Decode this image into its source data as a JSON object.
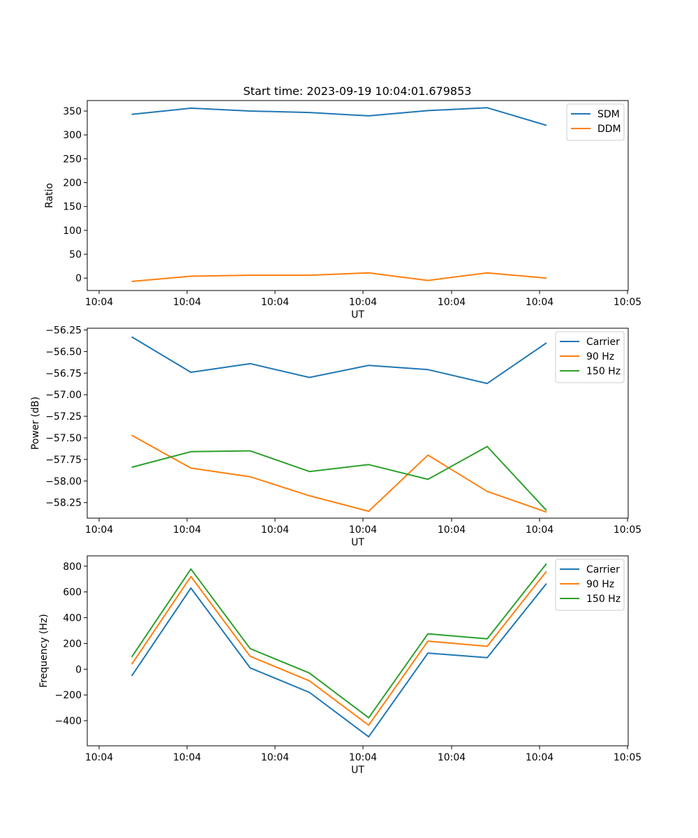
{
  "figure": {
    "title": "Start time: 2023-09-19 10:04:01.679853"
  },
  "chart_data": [
    {
      "type": "line",
      "title": "Start time: 2023-09-19 10:04:01.679853",
      "xlabel": "UT",
      "ylabel": "Ratio",
      "x_tick_labels": [
        "10:04",
        "10:04",
        "10:04",
        "10:04",
        "10:04",
        "10:04",
        "10:04",
        "10:05"
      ],
      "y_ticks": [
        0,
        50,
        100,
        150,
        200,
        250,
        300,
        350
      ],
      "ylim": [
        -26,
        372
      ],
      "x": [
        1,
        2,
        3,
        4,
        5,
        6,
        7,
        8
      ],
      "xlim": [
        0.25,
        9.38
      ],
      "legend_position": "top-right",
      "series": [
        {
          "name": "SDM",
          "color": "#1f77b4",
          "values": [
            343,
            356,
            350,
            347,
            340,
            351,
            357,
            320
          ]
        },
        {
          "name": "DDM",
          "color": "#ff7f0e",
          "values": [
            -7,
            4,
            6,
            6,
            11,
            -5,
            11,
            0
          ]
        }
      ]
    },
    {
      "type": "line",
      "title": "",
      "xlabel": "UT",
      "ylabel": "Power (dB)",
      "x_tick_labels": [
        "10:04",
        "10:04",
        "10:04",
        "10:04",
        "10:04",
        "10:04",
        "10:04",
        "10:05"
      ],
      "y_ticks": [
        -58.25,
        -58.0,
        -57.75,
        -57.5,
        -57.25,
        -57.0,
        -56.75,
        -56.5,
        -56.25
      ],
      "y_tick_labels": [
        "−58.25",
        "−58.00",
        "−57.75",
        "−57.50",
        "−57.25",
        "−57.00",
        "−56.75",
        "−56.50",
        "−56.25"
      ],
      "ylim": [
        -58.43,
        -56.23
      ],
      "x": [
        1,
        2,
        3,
        4,
        5,
        6,
        7,
        8
      ],
      "xlim": [
        0.25,
        9.38
      ],
      "legend_position": "top-right",
      "series": [
        {
          "name": "Carrier",
          "color": "#1f77b4",
          "values": [
            -56.33,
            -56.74,
            -56.64,
            -56.8,
            -56.66,
            -56.71,
            -56.87,
            -56.4
          ]
        },
        {
          "name": "90 Hz",
          "color": "#ff7f0e",
          "values": [
            -57.47,
            -57.85,
            -57.95,
            -58.17,
            -58.35,
            -57.7,
            -58.12,
            -58.36
          ]
        },
        {
          "name": "150 Hz",
          "color": "#2ca02c",
          "values": [
            -57.84,
            -57.66,
            -57.65,
            -57.89,
            -57.81,
            -57.98,
            -57.6,
            -58.34
          ]
        }
      ]
    },
    {
      "type": "line",
      "title": "",
      "xlabel": "UT",
      "ylabel": "Frequency (Hz)",
      "x_tick_labels": [
        "10:04",
        "10:04",
        "10:04",
        "10:04",
        "10:04",
        "10:04",
        "10:04",
        "10:05"
      ],
      "y_ticks": [
        -400,
        -200,
        0,
        200,
        400,
        600,
        800
      ],
      "y_tick_labels": [
        "−400",
        "−200",
        "0",
        "200",
        "400",
        "600",
        "800"
      ],
      "ylim": [
        -595,
        880
      ],
      "x": [
        1,
        2,
        3,
        4,
        5,
        6,
        7,
        8
      ],
      "xlim": [
        0.25,
        9.38
      ],
      "legend_position": "top-right",
      "series": [
        {
          "name": "Carrier",
          "color": "#1f77b4",
          "values": [
            -52,
            630,
            10,
            -180,
            -525,
            125,
            90,
            665
          ]
        },
        {
          "name": "90 Hz",
          "color": "#ff7f0e",
          "values": [
            38,
            720,
            100,
            -90,
            -435,
            218,
            178,
            760
          ]
        },
        {
          "name": "150 Hz",
          "color": "#2ca02c",
          "values": [
            95,
            778,
            160,
            -30,
            -377,
            275,
            236,
            820
          ]
        }
      ]
    }
  ]
}
